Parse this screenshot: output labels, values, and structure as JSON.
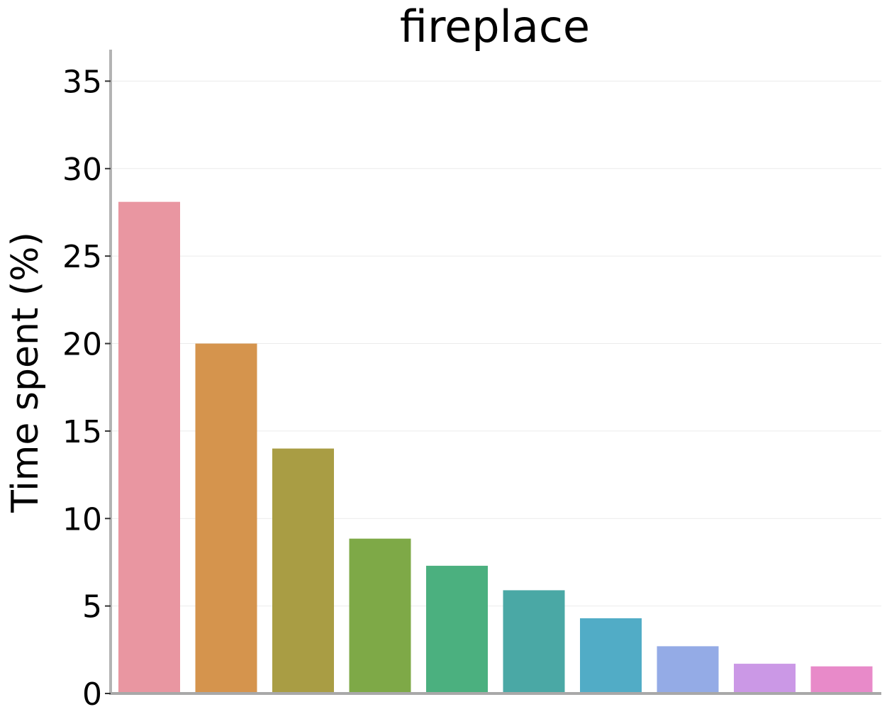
{
  "chart_data": {
    "type": "bar",
    "title": "fireplace",
    "xlabel": "",
    "ylabel": "Time spent (%)",
    "ylim": [
      0,
      36.8
    ],
    "yticks": [
      0,
      5,
      10,
      15,
      20,
      25,
      30,
      35
    ],
    "grid": "horizontal",
    "categories": [
      "",
      "",
      "",
      "",
      "",
      "",
      "",
      "",
      "",
      ""
    ],
    "values": [
      28.1,
      20.0,
      14.0,
      8.85,
      7.3,
      5.9,
      4.3,
      2.7,
      1.7,
      1.55
    ],
    "colors": [
      "#e996a1",
      "#d5944d",
      "#a99d44",
      "#7ea947",
      "#4bb07f",
      "#4aa8a5",
      "#51acc6",
      "#94abe6",
      "#cb98e6",
      "#e88ac9"
    ]
  }
}
